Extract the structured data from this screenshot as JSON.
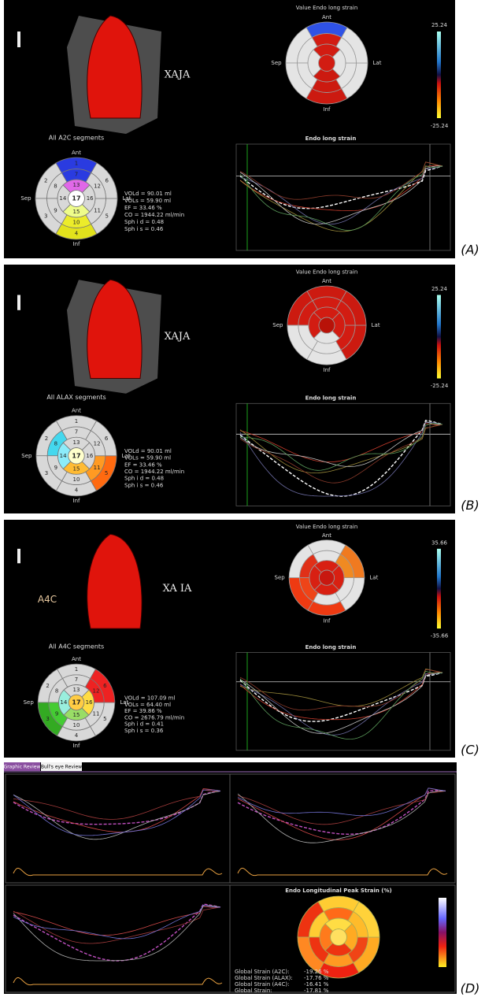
{
  "panels": [
    {
      "label": "(A)",
      "view_label": "XAJA",
      "segments_title": "All A2C segments",
      "bullseye": {
        "directions": {
          "ant": "Ant",
          "inf": "Inf",
          "sep": "Sep",
          "lat": "Lat"
        },
        "segments": [
          "1",
          "2",
          "3",
          "4",
          "5",
          "6",
          "7",
          "8",
          "9",
          "10",
          "11",
          "12",
          "13",
          "14",
          "15",
          "16",
          "17"
        ],
        "segment_colors": [
          "#2a3be0",
          "#d8d8d8",
          "#d8d8d8",
          "#e2e21c",
          "#d8d8d8",
          "#d8d8d8",
          "#2a3be0",
          "#d8d8d8",
          "#d8d8d8",
          "#ecec2a",
          "#d8d8d8",
          "#d8d8d8",
          "#e068e8",
          "#d8d8d8",
          "#eefc8a",
          "#d8d8d8",
          "#ffffff"
        ]
      },
      "stats": [
        "VOLd = 90.01 ml",
        "VOLs = 59.90 ml",
        "EF = 33.46 %",
        "CO = 1944.22 ml/min",
        "Sph i d = 0.48",
        "Sph i s = 0.46"
      ],
      "strain_map": {
        "title": "Value Endo long strain",
        "directions": {
          "ant": "Ant",
          "inf": "Inf",
          "sep": "Sep",
          "lat": "Lat"
        },
        "segment_colors": [
          "#2f52e6",
          "#e4e4e4",
          "#e4e4e4",
          "#cc1a10",
          "#e4e4e4",
          "#e4e4e4",
          "#d21c12",
          "#e4e4e4",
          "#e4e4e4",
          "#cc1a10",
          "#e4e4e4",
          "#e4e4e4",
          "#d21c12",
          "#e4e4e4",
          "#cc1a10",
          "#e4e4e4",
          "#d21c12"
        ]
      },
      "color_scale": {
        "max": "25.24",
        "min": "-25.24"
      },
      "plot_title": "Endo long strain"
    },
    {
      "label": "(B)",
      "view_label": "XAJA",
      "segments_title": "All ALAX segments",
      "bullseye": {
        "directions": {
          "ant": "Ant",
          "inf": "Inf",
          "sep": "Sep",
          "lat": "Lat"
        },
        "segments": [
          "1",
          "2",
          "3",
          "4",
          "5",
          "6",
          "7",
          "8",
          "9",
          "10",
          "11",
          "12",
          "13",
          "14",
          "15",
          "16",
          "17"
        ],
        "segment_colors": [
          "#d8d8d8",
          "#d8d8d8",
          "#d8d8d8",
          "#d8d8d8",
          "#ff6a10",
          "#d8d8d8",
          "#d8d8d8",
          "#44d8ee",
          "#d8d8d8",
          "#d8d8d8",
          "#ff9a22",
          "#d8d8d8",
          "#d8d8d8",
          "#8cecfa",
          "#ffbb33",
          "#d8d8d8",
          "#ffffcc"
        ]
      },
      "stats": [
        "VOLd = 90.01 ml",
        "VOLs = 59.90 ml",
        "EF = 33.46 %",
        "CO = 1944.22 ml/min",
        "Sph i d = 0.48",
        "Sph i s = 0.46"
      ],
      "strain_map": {
        "title": "Value Endo long strain",
        "directions": {
          "ant": "Ant",
          "inf": "Inf",
          "sep": "Sep",
          "lat": "Lat"
        },
        "segment_colors": [
          "#cc1a10",
          "#cc1a10",
          "#e4e4e4",
          "#e4e4e4",
          "#cc1a10",
          "#cc1a10",
          "#d21c12",
          "#d21c12",
          "#e4e4e4",
          "#e4e4e4",
          "#d21c12",
          "#d21c12",
          "#d21c12",
          "#d21c12",
          "#e4e4e4",
          "#d21c12",
          "#b81208"
        ]
      },
      "color_scale": {
        "max": "25.24",
        "min": "-25.24"
      },
      "plot_title": "Endo long strain"
    },
    {
      "label": "(C)",
      "view_label": "XA IA",
      "view_name": "A4C",
      "segments_title": "All A4C segments",
      "bullseye": {
        "directions": {
          "ant": "Ant",
          "inf": "Inf",
          "sep": "Sep",
          "lat": "Lat"
        },
        "segments": [
          "1",
          "2",
          "3",
          "4",
          "5",
          "6",
          "7",
          "8",
          "9",
          "10",
          "11",
          "12",
          "13",
          "14",
          "15",
          "16",
          "17"
        ],
        "segment_colors": [
          "#d8d8d8",
          "#d8d8d8",
          "#33aa22",
          "#d8d8d8",
          "#d8d8d8",
          "#ee2222",
          "#d8d8d8",
          "#d8d8d8",
          "#44cc33",
          "#d8d8d8",
          "#d8d8d8",
          "#ee2222",
          "#d8d8d8",
          "#99eedd",
          "#99dd66",
          "#ffdd44",
          "#ffcc44"
        ]
      },
      "stats": [
        "VOLd = 107.09 ml",
        "VOLs = 64.40 ml",
        "EF = 39.86 %",
        "CO = 2676.79 ml/min",
        "Sph i d = 0.41",
        "Sph i s = 0.36"
      ],
      "strain_map": {
        "title": "Value Endo long strain",
        "directions": {
          "ant": "Ant",
          "inf": "Inf",
          "sep": "Sep",
          "lat": "Lat"
        },
        "segment_colors": [
          "#e4e4e4",
          "#e4e4e4",
          "#ee3a12",
          "#ee3a12",
          "#e4e4e4",
          "#f07a20",
          "#e4e4e4",
          "#e03018",
          "#ee4418",
          "#e4e4e4",
          "#e4e4e4",
          "#f08a22",
          "#d82012",
          "#d82012",
          "#d82012",
          "#d82012",
          "#c81810"
        ]
      },
      "color_scale": {
        "max": "35.66",
        "min": "-35.66"
      },
      "plot_title": "Endo long strain"
    }
  ],
  "review": {
    "label": "(D)",
    "tabs": [
      "Graphic Review",
      "Bull's eye Review"
    ],
    "map_title": "Endo Longitudinal Peak Strain (%)",
    "segment_colors": [
      "#ffcc33",
      "#ee3311",
      "#ff8822",
      "#ee2211",
      "#ffaa22",
      "#ffd23a",
      "#ff6a18",
      "#ffcc33",
      "#ee3311",
      "#ff9922",
      "#f04416",
      "#ffbb2a",
      "#ffdd44",
      "#ff7a1c",
      "#ee3311",
      "#ffaa22",
      "#ffe060"
    ],
    "global_strain": [
      {
        "label": "Global Strain (A2C):",
        "value": "-19.26 %"
      },
      {
        "label": "Global Strain (ALAX):",
        "value": "-17.76 %"
      },
      {
        "label": "Global Strain (A4C):",
        "value": "-16.41 %"
      },
      {
        "label": "Global Strain:",
        "value": "-17.81 %"
      }
    ]
  }
}
